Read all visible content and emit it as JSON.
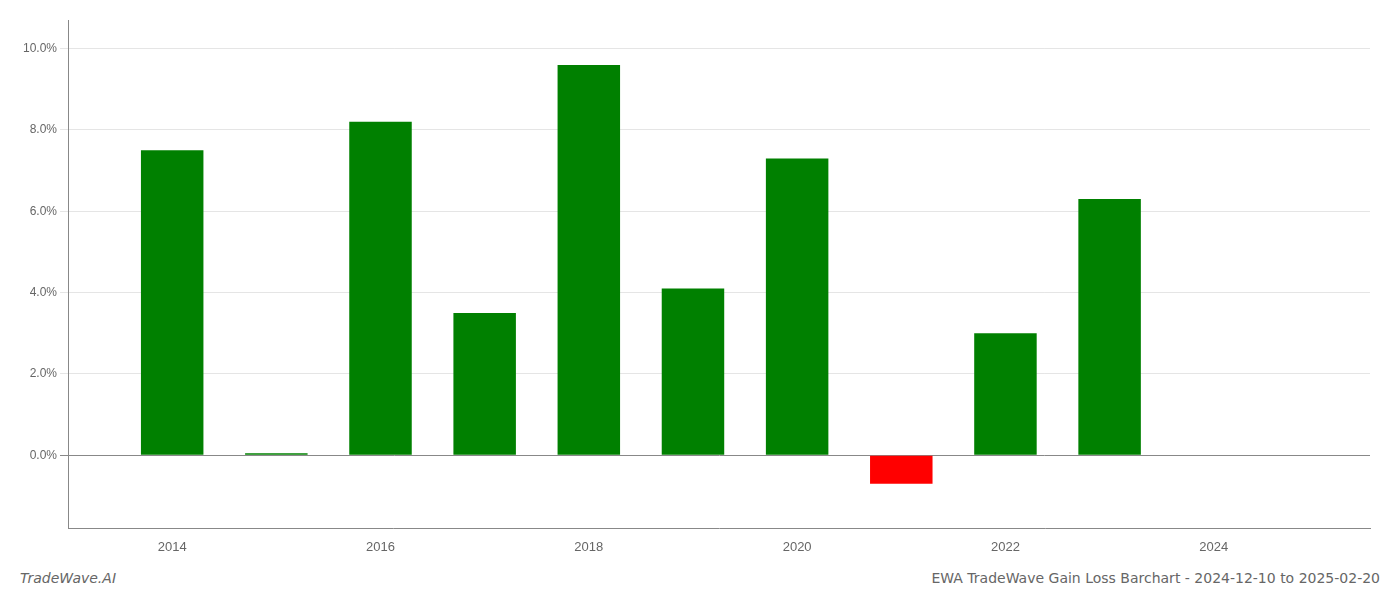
{
  "chart_data": {
    "type": "bar",
    "x": [
      2014,
      2015,
      2016,
      2017,
      2018,
      2019,
      2020,
      2021,
      2022,
      2023,
      2024
    ],
    "values": [
      0.075,
      0.0005,
      0.082,
      0.035,
      0.096,
      0.041,
      0.073,
      -0.007,
      0.03,
      0.063,
      0.0
    ],
    "colors": [
      "#008000",
      "#008000",
      "#008000",
      "#008000",
      "#008000",
      "#008000",
      "#008000",
      "#ff0000",
      "#008000",
      "#008000",
      "#008000"
    ],
    "xlim": [
      2013.0,
      2025.5
    ],
    "xticks": [
      2014,
      2016,
      2018,
      2020,
      2022,
      2024
    ],
    "ylim": [
      -0.018,
      0.107
    ],
    "yticks": [
      {
        "value": 0.0,
        "label": "0.0%"
      },
      {
        "value": 0.02,
        "label": "2.0%"
      },
      {
        "value": 0.04,
        "label": "4.0%"
      },
      {
        "value": 0.06,
        "label": "6.0%"
      },
      {
        "value": 0.08,
        "label": "8.0%"
      },
      {
        "value": 0.1,
        "label": "10.0%"
      }
    ],
    "grid": "y",
    "annotations": [
      "TradeWave.AI",
      "EWA TradeWave Gain Loss Barchart - 2024-12-10 to 2025-02-20"
    ]
  }
}
